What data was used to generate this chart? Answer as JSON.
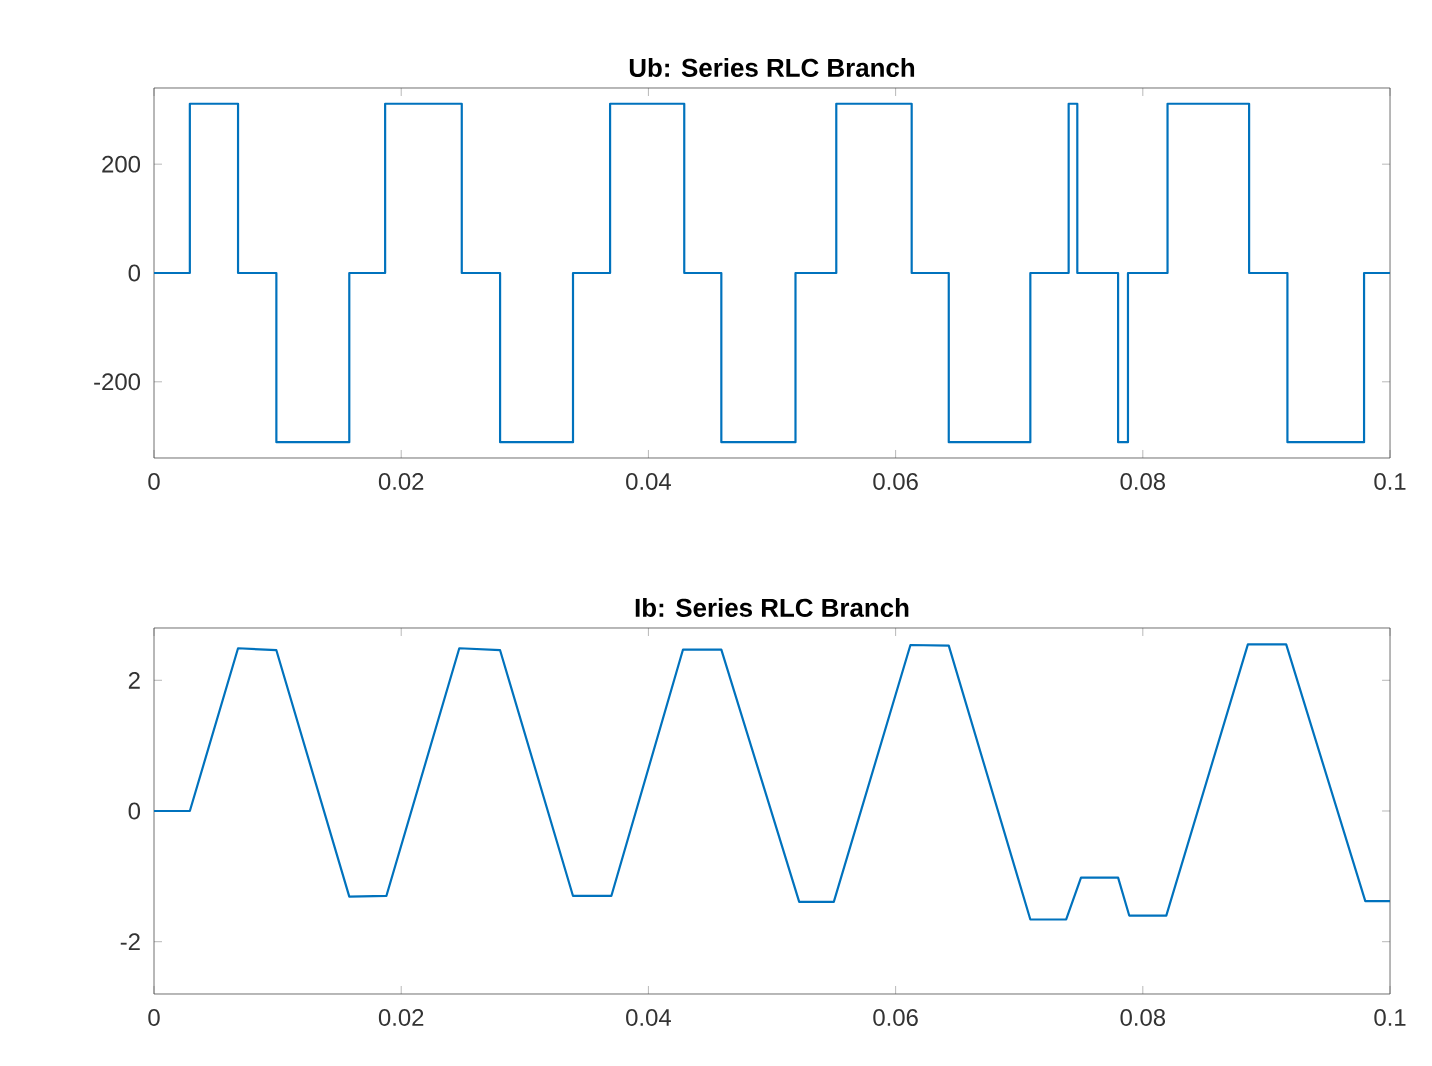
{
  "chart_data": [
    {
      "type": "line",
      "title": "Ub: Series RLC Branch",
      "color": "#0072bd",
      "xlim": [
        0,
        0.1
      ],
      "ylim": [
        -340,
        340
      ],
      "xticks": [
        0,
        0.02,
        0.04,
        0.06,
        0.08,
        0.1
      ],
      "yticks": [
        -200,
        0,
        200
      ],
      "grid": false,
      "marker": "none",
      "x": [
        0,
        0.0029,
        0.0029,
        0.0068,
        0.0068,
        0.0099,
        0.0099,
        0.0158,
        0.0158,
        0.0187,
        0.0187,
        0.0249,
        0.0249,
        0.028,
        0.028,
        0.0339,
        0.0339,
        0.0369,
        0.0369,
        0.0429,
        0.0429,
        0.0459,
        0.0459,
        0.0519,
        0.0519,
        0.0552,
        0.0552,
        0.0613,
        0.0613,
        0.0643,
        0.0643,
        0.0709,
        0.0709,
        0.074,
        0.074,
        0.0747,
        0.0747,
        0.078,
        0.078,
        0.0788,
        0.0788,
        0.082,
        0.082,
        0.0886,
        0.0886,
        0.0917,
        0.0917,
        0.0979,
        0.0979,
        0.1
      ],
      "values": [
        0,
        0,
        311,
        311,
        0,
        0,
        -311,
        -311,
        0,
        0,
        311,
        311,
        0,
        0,
        -311,
        -311,
        0,
        0,
        311,
        311,
        0,
        0,
        -311,
        -311,
        0,
        0,
        311,
        311,
        0,
        0,
        -311,
        -311,
        0,
        0,
        311,
        311,
        0,
        0,
        -311,
        -311,
        0,
        0,
        311,
        311,
        0,
        0,
        -311,
        -311,
        0,
        0
      ]
    },
    {
      "type": "line",
      "title": "Ib: Series RLC Branch",
      "color": "#0072bd",
      "xlim": [
        0,
        0.1
      ],
      "ylim": [
        -2.8,
        2.8
      ],
      "xticks": [
        0,
        0.02,
        0.04,
        0.06,
        0.08,
        0.1
      ],
      "yticks": [
        -2,
        0,
        2
      ],
      "grid": false,
      "marker": "none",
      "x": [
        0,
        0.0029,
        0.0068,
        0.0099,
        0.0158,
        0.0188,
        0.0247,
        0.028,
        0.0339,
        0.037,
        0.0428,
        0.0459,
        0.0522,
        0.055,
        0.0612,
        0.0643,
        0.0709,
        0.0738,
        0.075,
        0.078,
        0.0789,
        0.0819,
        0.0885,
        0.0916,
        0.098,
        0.1
      ],
      "values": [
        0,
        0,
        2.49,
        2.46,
        -1.31,
        -1.3,
        2.49,
        2.46,
        -1.3,
        -1.3,
        2.47,
        2.47,
        -1.39,
        -1.39,
        2.54,
        2.53,
        -1.66,
        -1.66,
        -1.02,
        -1.02,
        -1.6,
        -1.6,
        2.55,
        2.55,
        -1.38,
        -1.38
      ]
    }
  ]
}
